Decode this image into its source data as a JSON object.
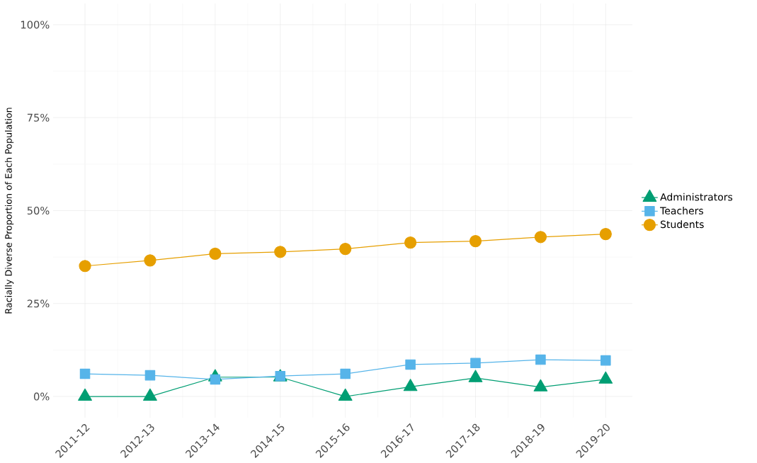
{
  "chart_data": {
    "type": "line",
    "ylabel": "Racially Diverse Proportion of Each Population",
    "categories": [
      "2011-12",
      "2012-13",
      "2013-14",
      "2014-15",
      "2015-16",
      "2016-17",
      "2017-18",
      "2018-19",
      "2019-20"
    ],
    "series": [
      {
        "name": "Administrators",
        "color": "#009e73",
        "marker": "triangle",
        "values": [
          0,
          0,
          5.2,
          5.2,
          0,
          2.6,
          5.0,
          2.5,
          4.6
        ]
      },
      {
        "name": "Teachers",
        "color": "#56b4e9",
        "marker": "square",
        "values": [
          6.1,
          5.7,
          4.6,
          5.5,
          6.1,
          8.6,
          9.0,
          9.9,
          9.7
        ]
      },
      {
        "name": "Students",
        "color": "#e69f00",
        "marker": "circle",
        "values": [
          35.1,
          36.6,
          38.4,
          38.9,
          39.7,
          41.4,
          41.8,
          42.9,
          43.7
        ]
      }
    ],
    "ylim": [
      -5.7,
      105.7
    ],
    "yticks": [
      {
        "value": 0,
        "label": "0%"
      },
      {
        "value": 25,
        "label": "25%"
      },
      {
        "value": 50,
        "label": "50%"
      },
      {
        "value": 75,
        "label": "75%"
      },
      {
        "value": 100,
        "label": "100%"
      }
    ],
    "grid": true,
    "legend": "right",
    "line_style": "solid"
  }
}
